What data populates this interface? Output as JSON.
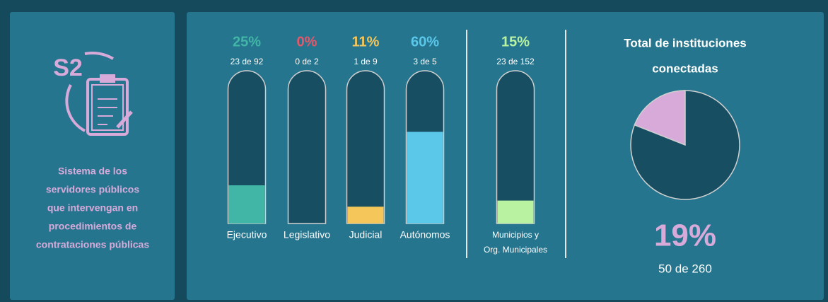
{
  "sidebar": {
    "badge": "S2",
    "lines": [
      "Sistema de los",
      "servidores públicos",
      "que intervengan en",
      "procedimientos de",
      "contrataciones públicas"
    ]
  },
  "gauges": [
    {
      "name": [
        "Ejecutivo"
      ],
      "value": 25,
      "value_label": "25%",
      "detail": "23 de 92",
      "color": "#41b6a6"
    },
    {
      "name": [
        "Legislativo"
      ],
      "value": 0,
      "value_label": "0%",
      "detail": "0 de 2",
      "color": "#e5586a"
    },
    {
      "name": [
        "Judicial"
      ],
      "value": 11,
      "value_label": "11%",
      "detail": "1 de 9",
      "color": "#f5c65a"
    },
    {
      "name": [
        "Autónomos"
      ],
      "value": 60,
      "value_label": "60%",
      "detail": "3 de 5",
      "color": "#5bc8ea"
    },
    {
      "name": [
        "Municipios y",
        "Org. Municipales"
      ],
      "value": 15,
      "value_label": "15%",
      "detail": "23 de 152",
      "color": "#b9f2a0"
    }
  ],
  "total": {
    "title": [
      "Total de instituciones",
      "conectadas"
    ],
    "value": 19,
    "value_label": "19%",
    "detail": "50 de 260",
    "color": "#d8aad9"
  }
}
